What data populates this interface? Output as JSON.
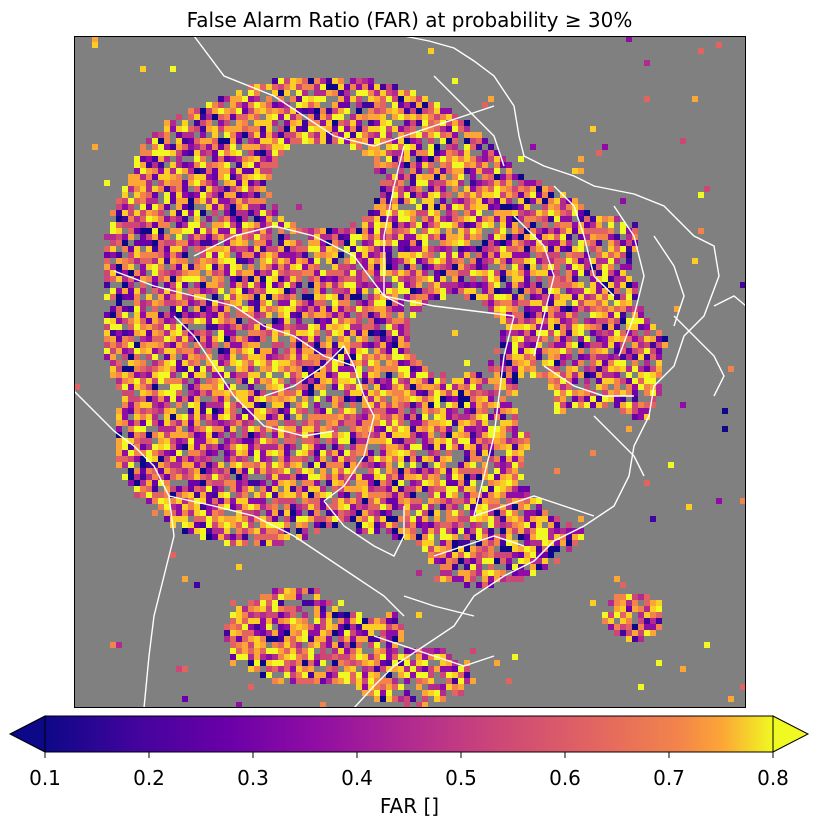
{
  "title": "False Alarm Ratio (FAR) at probability ≥ 30%",
  "colorbar": {
    "label": "FAR []",
    "ticks": [
      "0.1",
      "0.2",
      "0.3",
      "0.4",
      "0.5",
      "0.6",
      "0.7",
      "0.8"
    ],
    "min": 0.1,
    "max": 0.8,
    "colormap": "plasma",
    "extend": "both"
  },
  "map": {
    "background_color": "#808080",
    "border_color": "#ffffff",
    "region": "Brazil and surrounding South America"
  }
}
